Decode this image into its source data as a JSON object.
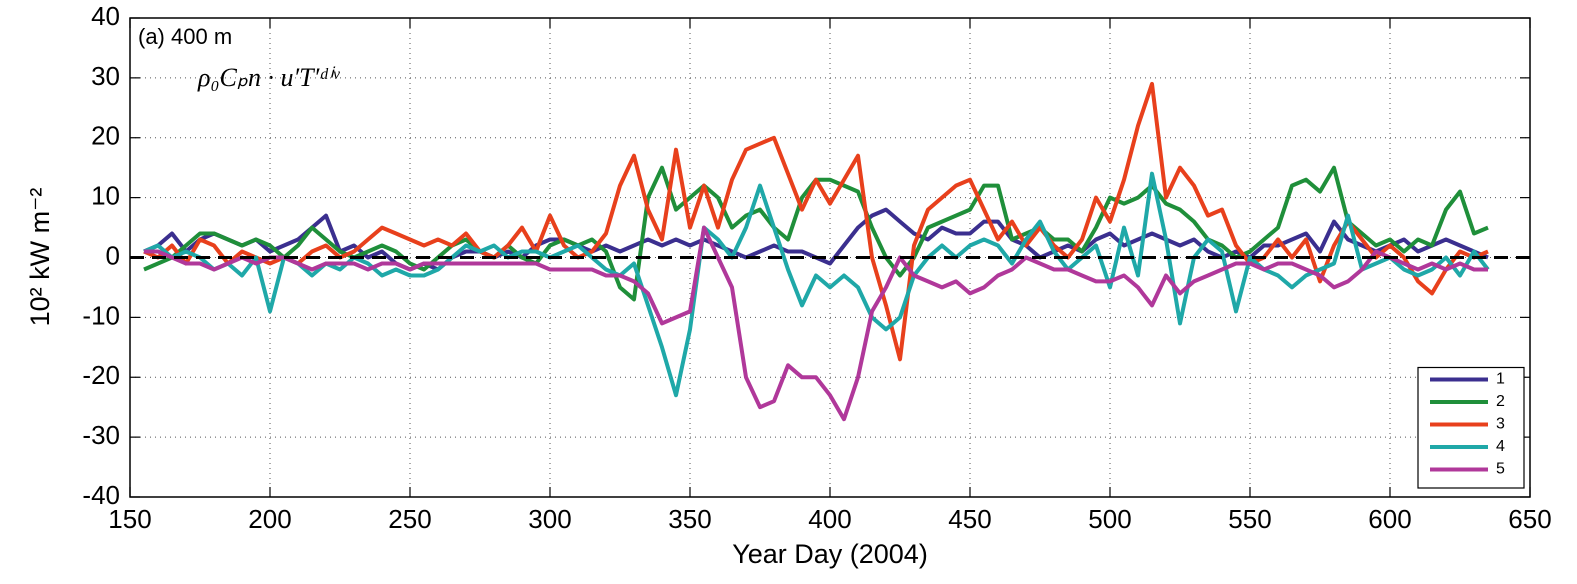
{
  "chart_data": {
    "type": "line",
    "title": "(a) 400 m",
    "annotation": "ρ₀Cₚn · u′T′ᵈⁱᵛ",
    "xlabel": "Year Day (2004)",
    "ylabel": "10² kW m⁻²",
    "x": [
      155,
      160,
      165,
      170,
      175,
      180,
      185,
      190,
      195,
      200,
      205,
      210,
      215,
      220,
      225,
      230,
      235,
      240,
      245,
      250,
      255,
      260,
      265,
      270,
      275,
      280,
      285,
      290,
      295,
      300,
      305,
      310,
      315,
      320,
      325,
      330,
      335,
      340,
      345,
      350,
      355,
      360,
      365,
      370,
      375,
      380,
      385,
      390,
      395,
      400,
      405,
      410,
      415,
      420,
      425,
      430,
      435,
      440,
      445,
      450,
      455,
      460,
      465,
      470,
      475,
      480,
      485,
      490,
      495,
      500,
      505,
      510,
      515,
      520,
      525,
      530,
      535,
      540,
      545,
      550,
      555,
      560,
      565,
      570,
      575,
      580,
      585,
      590,
      595,
      600,
      605,
      610,
      615,
      620,
      625,
      630,
      635
    ],
    "series": [
      {
        "name": "1",
        "color": "#3b2f8f",
        "values": [
          1,
          2,
          4,
          1,
          3,
          4,
          3,
          2,
          3,
          1,
          2,
          3,
          5,
          7,
          1,
          2,
          0,
          1,
          -1,
          -2,
          -1,
          -2,
          0,
          1,
          1,
          0,
          1,
          0,
          2,
          3,
          3,
          2,
          1,
          2,
          1,
          2,
          3,
          2,
          3,
          2,
          3,
          2,
          1,
          0,
          1,
          2,
          1,
          1,
          0,
          -1,
          2,
          5,
          7,
          8,
          6,
          4,
          3,
          5,
          4,
          4,
          6,
          6,
          3,
          2,
          0,
          1,
          2,
          1,
          3,
          4,
          2,
          3,
          4,
          3,
          2,
          3,
          1,
          0,
          1,
          0,
          2,
          2,
          3,
          4,
          1,
          6,
          3,
          2,
          1,
          2,
          3,
          1,
          2,
          3,
          2,
          1,
          0
        ]
      },
      {
        "name": "2",
        "color": "#1f8f3a",
        "values": [
          -2,
          -1,
          0,
          2,
          4,
          4,
          3,
          2,
          3,
          2,
          0,
          2,
          5,
          3,
          1,
          0,
          1,
          2,
          1,
          -1,
          -2,
          0,
          2,
          3,
          1,
          0,
          2,
          0,
          -1,
          2,
          3,
          2,
          3,
          1,
          -5,
          -7,
          10,
          15,
          8,
          10,
          12,
          10,
          5,
          7,
          8,
          5,
          3,
          10,
          13,
          13,
          12,
          11,
          5,
          0,
          -3,
          0,
          5,
          6,
          7,
          8,
          12,
          12,
          3,
          4,
          5,
          3,
          3,
          1,
          5,
          10,
          9,
          10,
          12,
          9,
          8,
          6,
          3,
          2,
          0,
          1,
          3,
          5,
          12,
          13,
          11,
          15,
          6,
          4,
          2,
          3,
          1,
          3,
          2,
          8,
          11,
          4,
          5
        ]
      },
      {
        "name": "3",
        "color": "#e8401c",
        "values": [
          1,
          0,
          2,
          -1,
          3,
          2,
          -1,
          1,
          0,
          -1,
          0,
          -1,
          1,
          2,
          0,
          1,
          3,
          5,
          4,
          3,
          2,
          3,
          2,
          4,
          1,
          0,
          2,
          5,
          1,
          7,
          2,
          0,
          1,
          4,
          12,
          17,
          8,
          3,
          18,
          5,
          12,
          5,
          13,
          18,
          19,
          20,
          14,
          8,
          13,
          9,
          13,
          17,
          0,
          -8,
          -17,
          2,
          8,
          10,
          12,
          13,
          8,
          3,
          6,
          2,
          5,
          2,
          0,
          3,
          10,
          6,
          13,
          22,
          29,
          10,
          15,
          12,
          7,
          8,
          2,
          -1,
          0,
          3,
          0,
          3,
          -4,
          2,
          6,
          3,
          0,
          2,
          0,
          -4,
          -6,
          -2,
          1,
          0,
          1
        ]
      },
      {
        "name": "4",
        "color": "#1fa8a8",
        "values": [
          1,
          2,
          0,
          1,
          0,
          -2,
          -1,
          -3,
          0,
          -9,
          0,
          -1,
          -3,
          -1,
          -2,
          0,
          -1,
          -3,
          -2,
          -3,
          -3,
          -2,
          0,
          2,
          1,
          2,
          0,
          1,
          1,
          0,
          1,
          2,
          0,
          -2,
          -3,
          -1,
          -8,
          -15,
          -23,
          -12,
          5,
          3,
          0,
          5,
          12,
          5,
          -2,
          -8,
          -3,
          -5,
          -3,
          -5,
          -10,
          -12,
          -10,
          -3,
          0,
          2,
          0,
          2,
          3,
          2,
          -1,
          3,
          6,
          1,
          -2,
          0,
          2,
          -5,
          5,
          -3,
          14,
          3,
          -11,
          0,
          3,
          1,
          -9,
          0,
          -2,
          -3,
          -5,
          -3,
          -2,
          -1,
          7,
          -2,
          -1,
          0,
          -2,
          -3,
          -2,
          0,
          -3,
          1,
          -2
        ]
      },
      {
        "name": "5",
        "color": "#b0389a",
        "values": [
          1,
          1,
          0,
          -1,
          -1,
          -2,
          -1,
          0,
          -1,
          0,
          0,
          -1,
          -2,
          -1,
          -1,
          -1,
          -2,
          -1,
          -1,
          -2,
          -1,
          -1,
          -1,
          -1,
          -1,
          -1,
          -1,
          -1,
          -1,
          -2,
          -2,
          -2,
          -2,
          -3,
          -3,
          -4,
          -6,
          -11,
          -10,
          -9,
          5,
          0,
          -5,
          -20,
          -25,
          -24,
          -18,
          -20,
          -20,
          -23,
          -27,
          -20,
          -9,
          -5,
          0,
          -3,
          -4,
          -5,
          -4,
          -6,
          -5,
          -3,
          -2,
          0,
          -1,
          -2,
          -2,
          -3,
          -4,
          -4,
          -3,
          -5,
          -8,
          -3,
          -6,
          -4,
          -3,
          -2,
          -1,
          -1,
          -2,
          -1,
          -1,
          -2,
          -3,
          -5,
          -4,
          -2,
          1,
          0,
          -1,
          -2,
          -1,
          -2,
          -1,
          -2,
          -2
        ]
      }
    ],
    "hline": 0,
    "xlim": [
      150,
      650
    ],
    "xticks": [
      150,
      200,
      250,
      300,
      350,
      400,
      450,
      500,
      550,
      600,
      650
    ],
    "ylim": [
      -40,
      40
    ],
    "yticks": [
      -40,
      -30,
      -20,
      -10,
      0,
      10,
      20,
      30,
      40
    ],
    "grid": true,
    "legend": "lower right"
  }
}
